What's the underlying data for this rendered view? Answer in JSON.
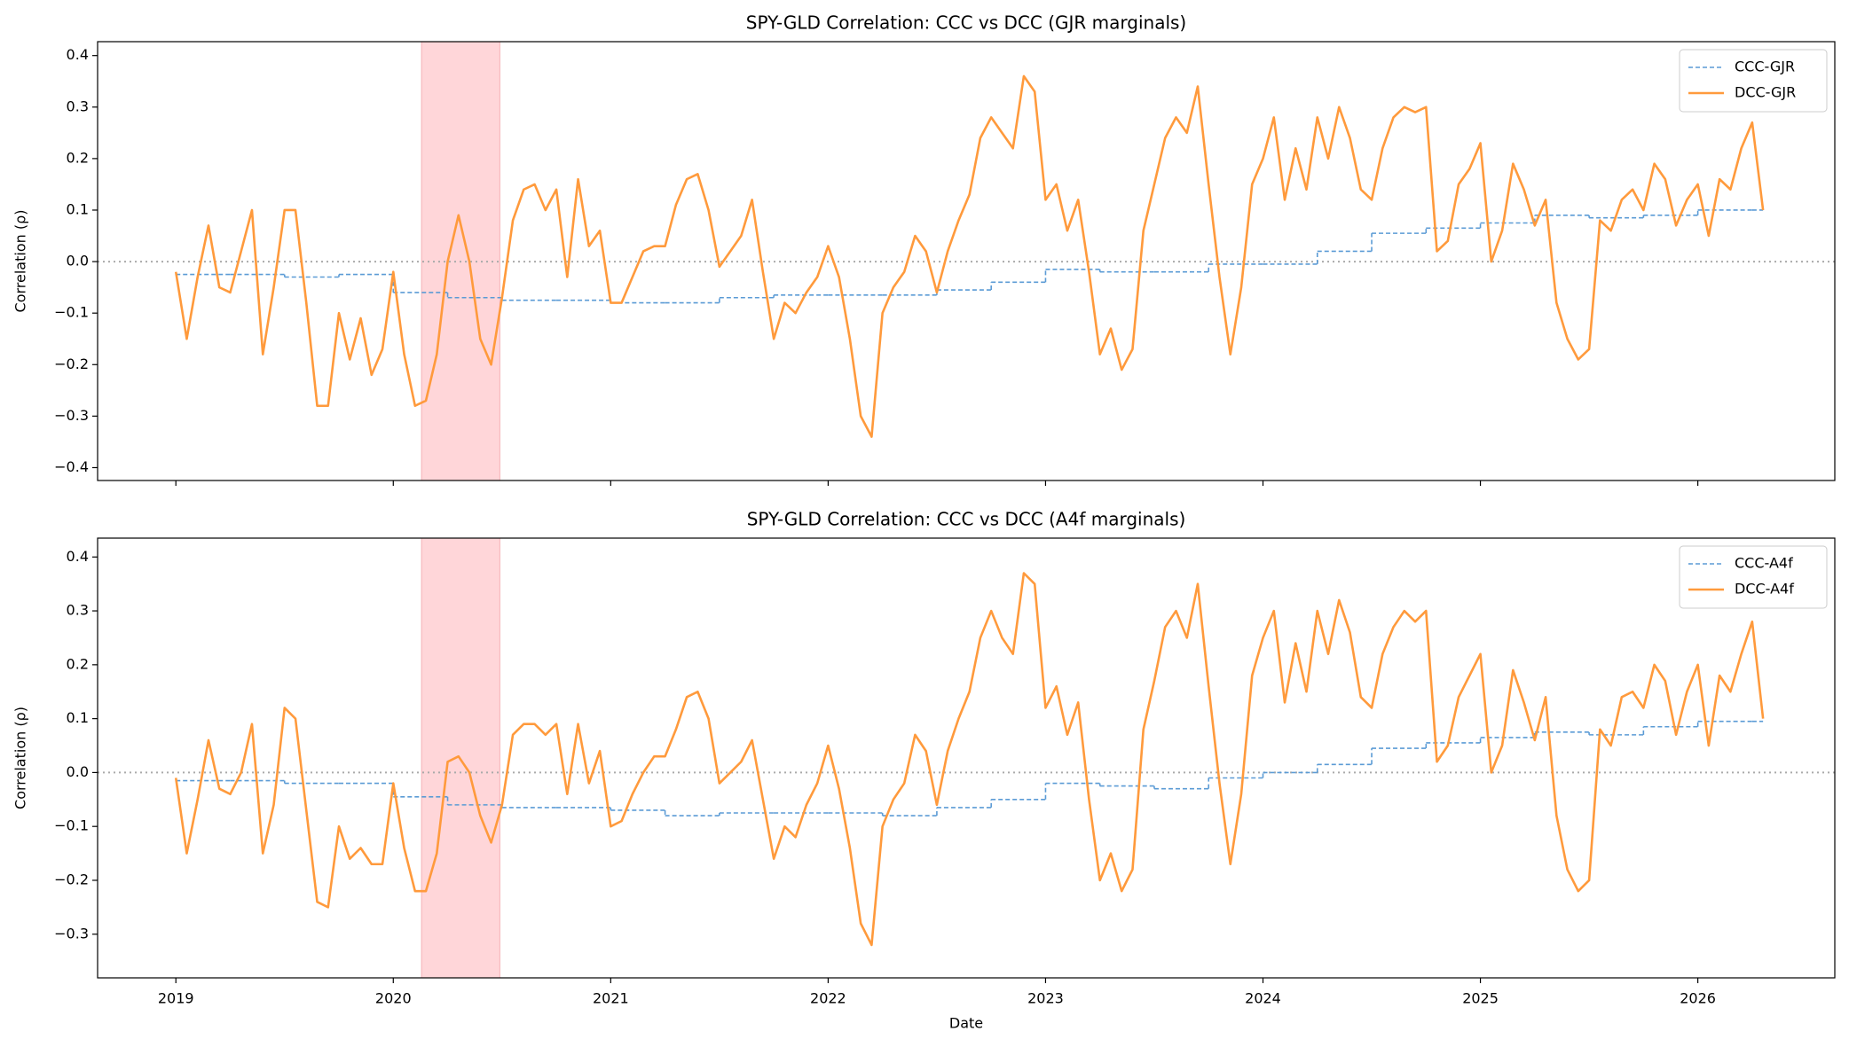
{
  "chart_data": [
    {
      "type": "line",
      "title": "SPY-GLD Correlation: CCC vs DCC (GJR marginals)",
      "ylabel": "Correlation (ρ)",
      "xlim": [
        2018.64,
        2026.63
      ],
      "xticks": [
        2019,
        2020,
        2021,
        2022,
        2023,
        2024,
        2025,
        2026
      ],
      "show_xtick_labels": false,
      "ylim": [
        -0.425,
        0.427
      ],
      "yticks": [
        {
          "value": -0.4,
          "label": "−0.4"
        },
        {
          "value": -0.3,
          "label": "−0.3"
        },
        {
          "value": -0.2,
          "label": "−0.2"
        },
        {
          "value": -0.1,
          "label": "−0.1"
        },
        {
          "value": 0,
          "label": "0.0"
        },
        0.1,
        0.2,
        0.3,
        0.4
      ],
      "shade": [
        2020.13,
        2020.49
      ],
      "shade_color": "#ffd6d9",
      "hline": 0,
      "legend": "upper right",
      "series": [
        {
          "name": "CCC-GJR",
          "color": "#5b9bd5",
          "style": "dashed",
          "step": true,
          "x": [
            2019,
            2019.25,
            2019.5,
            2019.75,
            2020,
            2020.25,
            2020.5,
            2020.75,
            2021,
            2021.25,
            2021.5,
            2021.75,
            2022,
            2022.25,
            2022.5,
            2022.75,
            2023,
            2023.25,
            2023.5,
            2023.75,
            2024,
            2024.25,
            2024.5,
            2024.75,
            2025,
            2025.25,
            2025.5,
            2025.75,
            2026,
            2026.25
          ],
          "values": [
            -0.025,
            -0.025,
            -0.03,
            -0.025,
            -0.06,
            -0.07,
            -0.075,
            -0.075,
            -0.08,
            -0.08,
            -0.07,
            -0.065,
            -0.065,
            -0.065,
            -0.055,
            -0.04,
            -0.015,
            -0.02,
            -0.02,
            -0.005,
            -0.005,
            0.02,
            0.055,
            0.065,
            0.075,
            0.09,
            0.085,
            0.09,
            0.1,
            0.1
          ]
        },
        {
          "name": "DCC-GJR",
          "color": "#ff9a3c",
          "style": "solid",
          "x": [
            2019,
            2019.05,
            2019.1,
            2019.15,
            2019.2,
            2019.25,
            2019.3,
            2019.35,
            2019.4,
            2019.45,
            2019.5,
            2019.55,
            2019.6,
            2019.65,
            2019.7,
            2019.75,
            2019.8,
            2019.85,
            2019.9,
            2019.95,
            2020,
            2020.05,
            2020.1,
            2020.15,
            2020.2,
            2020.25,
            2020.3,
            2020.35,
            2020.4,
            2020.45,
            2020.5,
            2020.55,
            2020.6,
            2020.65,
            2020.7,
            2020.75,
            2020.8,
            2020.85,
            2020.9,
            2020.95,
            2021,
            2021.05,
            2021.1,
            2021.15,
            2021.2,
            2021.25,
            2021.3,
            2021.35,
            2021.4,
            2021.45,
            2021.5,
            2021.55,
            2021.6,
            2021.65,
            2021.7,
            2021.75,
            2021.8,
            2021.85,
            2021.9,
            2021.95,
            2022,
            2022.05,
            2022.1,
            2022.15,
            2022.2,
            2022.25,
            2022.3,
            2022.35,
            2022.4,
            2022.45,
            2022.5,
            2022.55,
            2022.6,
            2022.65,
            2022.7,
            2022.75,
            2022.8,
            2022.85,
            2022.9,
            2022.95,
            2023,
            2023.05,
            2023.1,
            2023.15,
            2023.2,
            2023.25,
            2023.3,
            2023.35,
            2023.4,
            2023.45,
            2023.5,
            2023.55,
            2023.6,
            2023.65,
            2023.7,
            2023.75,
            2023.8,
            2023.85,
            2023.9,
            2023.95,
            2024,
            2024.05,
            2024.1,
            2024.15,
            2024.2,
            2024.25,
            2024.3,
            2024.35,
            2024.4,
            2024.45,
            2024.5,
            2024.55,
            2024.6,
            2024.65,
            2024.7,
            2024.75,
            2024.8,
            2024.85,
            2024.9,
            2024.95,
            2025,
            2025.05,
            2025.1,
            2025.15,
            2025.2,
            2025.25,
            2025.3,
            2025.35,
            2025.4,
            2025.45,
            2025.5,
            2025.55,
            2025.6,
            2025.65,
            2025.7,
            2025.75,
            2025.8,
            2025.85,
            2025.9,
            2025.95,
            2026,
            2026.05,
            2026.1,
            2026.15,
            2026.2,
            2026.25,
            2026.3
          ],
          "values": [
            -0.02,
            -0.15,
            -0.03,
            0.07,
            -0.05,
            -0.06,
            0.02,
            0.1,
            -0.18,
            -0.05,
            0.1,
            0.1,
            -0.08,
            -0.28,
            -0.28,
            -0.1,
            -0.19,
            -0.11,
            -0.22,
            -0.17,
            -0.02,
            -0.18,
            -0.28,
            -0.27,
            -0.18,
            0.0,
            0.09,
            0.0,
            -0.15,
            -0.2,
            -0.07,
            0.08,
            0.14,
            0.15,
            0.1,
            0.14,
            -0.03,
            0.16,
            0.03,
            0.06,
            -0.08,
            -0.08,
            -0.03,
            0.02,
            0.03,
            0.03,
            0.11,
            0.16,
            0.17,
            0.1,
            -0.01,
            0.02,
            0.05,
            0.12,
            -0.02,
            -0.15,
            -0.08,
            -0.1,
            -0.06,
            -0.03,
            0.03,
            -0.03,
            -0.15,
            -0.3,
            -0.34,
            -0.1,
            -0.05,
            -0.02,
            0.05,
            0.02,
            -0.06,
            0.02,
            0.08,
            0.13,
            0.24,
            0.28,
            0.25,
            0.22,
            0.36,
            0.33,
            0.12,
            0.15,
            0.06,
            0.12,
            -0.02,
            -0.18,
            -0.13,
            -0.21,
            -0.17,
            0.06,
            0.15,
            0.24,
            0.28,
            0.25,
            0.34,
            0.15,
            -0.03,
            -0.18,
            -0.05,
            0.15,
            0.2,
            0.28,
            0.12,
            0.22,
            0.14,
            0.28,
            0.2,
            0.3,
            0.24,
            0.14,
            0.12,
            0.22,
            0.28,
            0.3,
            0.29,
            0.3,
            0.02,
            0.04,
            0.15,
            0.18,
            0.23,
            0.0,
            0.06,
            0.19,
            0.14,
            0.07,
            0.12,
            -0.08,
            -0.15,
            -0.19,
            -0.17,
            0.08,
            0.06,
            0.12,
            0.14,
            0.1,
            0.19,
            0.16,
            0.07,
            0.12,
            0.15,
            0.05,
            0.16,
            0.14,
            0.22,
            0.27,
            0.1
          ]
        }
      ]
    },
    {
      "type": "line",
      "title": "SPY-GLD Correlation: CCC vs DCC (A4f marginals)",
      "ylabel": "Correlation (ρ)",
      "xlabel": "Date",
      "xlim": [
        2018.64,
        2026.63
      ],
      "xticks": [
        2019,
        2020,
        2021,
        2022,
        2023,
        2024,
        2025,
        2026
      ],
      "show_xtick_labels": true,
      "ylim": [
        -0.381,
        0.435
      ],
      "yticks": [
        {
          "value": -0.3,
          "label": "−0.3"
        },
        {
          "value": -0.2,
          "label": "−0.2"
        },
        {
          "value": -0.1,
          "label": "−0.1"
        },
        {
          "value": 0,
          "label": "0.0"
        },
        0.1,
        0.2,
        0.3,
        0.4
      ],
      "shade": [
        2020.13,
        2020.49
      ],
      "shade_color": "#ffd6d9",
      "hline": 0,
      "legend": "upper right",
      "series": [
        {
          "name": "CCC-A4f",
          "color": "#5b9bd5",
          "style": "dashed",
          "step": true,
          "x": [
            2019,
            2019.25,
            2019.5,
            2019.75,
            2020,
            2020.25,
            2020.5,
            2020.75,
            2021,
            2021.25,
            2021.5,
            2021.75,
            2022,
            2022.25,
            2022.5,
            2022.75,
            2023,
            2023.25,
            2023.5,
            2023.75,
            2024,
            2024.25,
            2024.5,
            2024.75,
            2025,
            2025.25,
            2025.5,
            2025.75,
            2026,
            2026.25
          ],
          "values": [
            -0.015,
            -0.015,
            -0.02,
            -0.02,
            -0.045,
            -0.06,
            -0.065,
            -0.065,
            -0.07,
            -0.08,
            -0.075,
            -0.075,
            -0.075,
            -0.08,
            -0.065,
            -0.05,
            -0.02,
            -0.025,
            -0.03,
            -0.01,
            0.0,
            0.015,
            0.045,
            0.055,
            0.065,
            0.075,
            0.07,
            0.085,
            0.095,
            0.095
          ]
        },
        {
          "name": "DCC-A4f",
          "color": "#ff9a3c",
          "style": "solid",
          "x": [
            2019,
            2019.05,
            2019.1,
            2019.15,
            2019.2,
            2019.25,
            2019.3,
            2019.35,
            2019.4,
            2019.45,
            2019.5,
            2019.55,
            2019.6,
            2019.65,
            2019.7,
            2019.75,
            2019.8,
            2019.85,
            2019.9,
            2019.95,
            2020,
            2020.05,
            2020.1,
            2020.15,
            2020.2,
            2020.25,
            2020.3,
            2020.35,
            2020.4,
            2020.45,
            2020.5,
            2020.55,
            2020.6,
            2020.65,
            2020.7,
            2020.75,
            2020.8,
            2020.85,
            2020.9,
            2020.95,
            2021,
            2021.05,
            2021.1,
            2021.15,
            2021.2,
            2021.25,
            2021.3,
            2021.35,
            2021.4,
            2021.45,
            2021.5,
            2021.55,
            2021.6,
            2021.65,
            2021.7,
            2021.75,
            2021.8,
            2021.85,
            2021.9,
            2021.95,
            2022,
            2022.05,
            2022.1,
            2022.15,
            2022.2,
            2022.25,
            2022.3,
            2022.35,
            2022.4,
            2022.45,
            2022.5,
            2022.55,
            2022.6,
            2022.65,
            2022.7,
            2022.75,
            2022.8,
            2022.85,
            2022.9,
            2022.95,
            2023,
            2023.05,
            2023.1,
            2023.15,
            2023.2,
            2023.25,
            2023.3,
            2023.35,
            2023.4,
            2023.45,
            2023.5,
            2023.55,
            2023.6,
            2023.65,
            2023.7,
            2023.75,
            2023.8,
            2023.85,
            2023.9,
            2023.95,
            2024,
            2024.05,
            2024.1,
            2024.15,
            2024.2,
            2024.25,
            2024.3,
            2024.35,
            2024.4,
            2024.45,
            2024.5,
            2024.55,
            2024.6,
            2024.65,
            2024.7,
            2024.75,
            2024.8,
            2024.85,
            2024.9,
            2024.95,
            2025,
            2025.05,
            2025.1,
            2025.15,
            2025.2,
            2025.25,
            2025.3,
            2025.35,
            2025.4,
            2025.45,
            2025.5,
            2025.55,
            2025.6,
            2025.65,
            2025.7,
            2025.75,
            2025.8,
            2025.85,
            2025.9,
            2025.95,
            2026,
            2026.05,
            2026.1,
            2026.15,
            2026.2,
            2026.25,
            2026.3
          ],
          "values": [
            -0.01,
            -0.15,
            -0.05,
            0.06,
            -0.03,
            -0.04,
            0.0,
            0.09,
            -0.15,
            -0.06,
            0.12,
            0.1,
            -0.07,
            -0.24,
            -0.25,
            -0.1,
            -0.16,
            -0.14,
            -0.17,
            -0.17,
            -0.02,
            -0.14,
            -0.22,
            -0.22,
            -0.15,
            0.02,
            0.03,
            0.0,
            -0.08,
            -0.13,
            -0.06,
            0.07,
            0.09,
            0.09,
            0.07,
            0.09,
            -0.04,
            0.09,
            -0.02,
            0.04,
            -0.1,
            -0.09,
            -0.04,
            0.0,
            0.03,
            0.03,
            0.08,
            0.14,
            0.15,
            0.1,
            -0.02,
            0.0,
            0.02,
            0.06,
            -0.05,
            -0.16,
            -0.1,
            -0.12,
            -0.06,
            -0.02,
            0.05,
            -0.03,
            -0.14,
            -0.28,
            -0.32,
            -0.1,
            -0.05,
            -0.02,
            0.07,
            0.04,
            -0.06,
            0.04,
            0.1,
            0.15,
            0.25,
            0.3,
            0.25,
            0.22,
            0.37,
            0.35,
            0.12,
            0.16,
            0.07,
            0.13,
            -0.05,
            -0.2,
            -0.15,
            -0.22,
            -0.18,
            0.08,
            0.17,
            0.27,
            0.3,
            0.25,
            0.35,
            0.16,
            -0.02,
            -0.17,
            -0.04,
            0.18,
            0.25,
            0.3,
            0.13,
            0.24,
            0.15,
            0.3,
            0.22,
            0.32,
            0.26,
            0.14,
            0.12,
            0.22,
            0.27,
            0.3,
            0.28,
            0.3,
            0.02,
            0.05,
            0.14,
            0.18,
            0.22,
            0.0,
            0.05,
            0.19,
            0.13,
            0.06,
            0.14,
            -0.08,
            -0.18,
            -0.22,
            -0.2,
            0.08,
            0.05,
            0.14,
            0.15,
            0.12,
            0.2,
            0.17,
            0.07,
            0.15,
            0.2,
            0.05,
            0.18,
            0.15,
            0.22,
            0.28,
            0.1
          ]
        }
      ]
    }
  ]
}
